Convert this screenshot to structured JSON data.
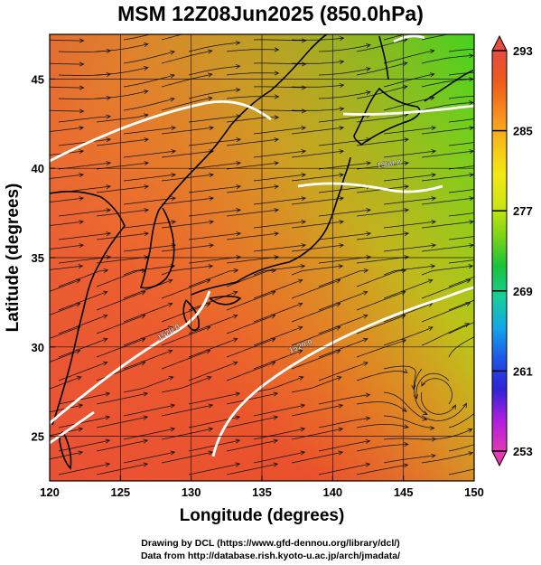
{
  "title": "MSM 12Z08Jun2025 (850.0hPa)",
  "map": {
    "x_axis": {
      "label": "Longitude (degrees)",
      "range": [
        120,
        150
      ],
      "ticks": [
        120,
        125,
        130,
        135,
        140,
        145,
        150
      ]
    },
    "y_axis": {
      "label": "Latitude  (degrees)",
      "range": [
        22.5,
        47.5
      ],
      "ticks": [
        25,
        30,
        35,
        40,
        45
      ]
    },
    "grid": true,
    "field": "temperature (shaded) with wind streamlines and geopotential height contours",
    "contour_labels": [
      {
        "text": "1560.0",
        "lon": 144.0,
        "lat": 40.1,
        "angle": -8
      },
      {
        "text": "1520.0",
        "lon": 128.5,
        "lat": 30.7,
        "angle": -32
      },
      {
        "text": "1520.0",
        "lon": 137.8,
        "lat": 29.9,
        "angle": -22
      }
    ]
  },
  "colorbar": {
    "min": 253,
    "max": 293,
    "tick_labels": [
      "293",
      "285",
      "277",
      "269",
      "261",
      "253"
    ],
    "colors": [
      "#e23ab0",
      "#b01ee0",
      "#2f23d6",
      "#1f55e8",
      "#14a6e8",
      "#17cf9a",
      "#19c23a",
      "#7ed416",
      "#cfe614",
      "#f2e816",
      "#f7c018",
      "#f78a1e",
      "#ee5a1c",
      "#e64c40"
    ]
  },
  "credits": {
    "line1": "Drawing by DCL (https://www.gfd-dennou.org/library/dcl/)",
    "line2": "Data from http://database.rish.kyoto-u.ac.jp/arch/jmadata/"
  }
}
